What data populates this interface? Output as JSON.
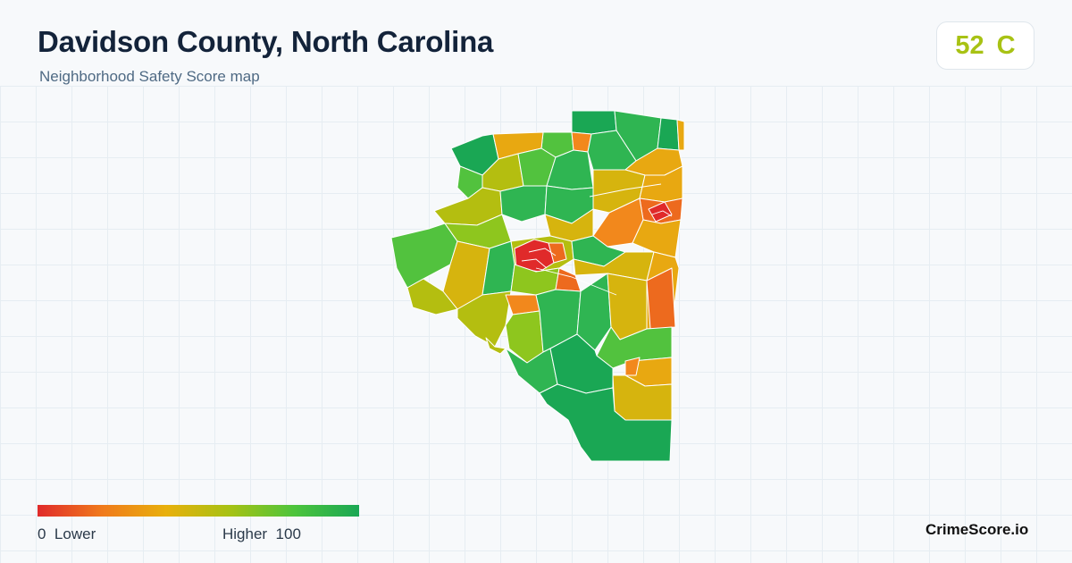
{
  "header": {
    "title": "Davidson County, North Carolina",
    "subtitle": "Neighborhood Safety Score map"
  },
  "score_badge": {
    "score": "52",
    "grade": "C",
    "color": "#a8c214"
  },
  "legend": {
    "low_value": "0",
    "low_label": "Lower",
    "high_label": "Higher",
    "high_value": "100",
    "colors": [
      "#e02a2a",
      "#f07a1c",
      "#e8b00c",
      "#a6c214",
      "#4cc43c",
      "#1aa754"
    ]
  },
  "brand": "CrimeScore.io",
  "palette": {
    "red": "#e02a2a",
    "dark_orange": "#ed6a1e",
    "orange": "#f2881c",
    "amber": "#e8a811",
    "yellow": "#d6b40e",
    "olive": "#b4be10",
    "lime": "#8ec61e",
    "light_green": "#52c23e",
    "green": "#2fb552",
    "dark_green": "#1aa754",
    "border": "#ffffff"
  }
}
